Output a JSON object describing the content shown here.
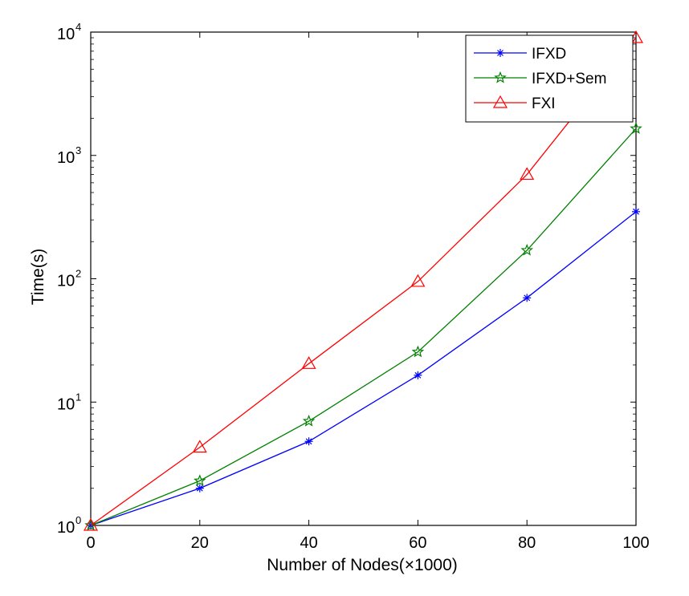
{
  "chart_data": {
    "type": "line",
    "title": "",
    "xlabel": "Number of Nodes(×1000)",
    "ylabel": "Time(s)",
    "xlim": [
      0,
      100
    ],
    "ylim": [
      1,
      10000
    ],
    "yscale": "log",
    "grid": false,
    "legend_position": "top-right",
    "x_ticks": [
      "0",
      "20",
      "40",
      "60",
      "80",
      "100"
    ],
    "y_ticks": [
      {
        "base": "10",
        "exp": "0",
        "value": 1
      },
      {
        "base": "10",
        "exp": "1",
        "value": 10
      },
      {
        "base": "10",
        "exp": "2",
        "value": 100
      },
      {
        "base": "10",
        "exp": "3",
        "value": 1000
      },
      {
        "base": "10",
        "exp": "4",
        "value": 10000
      }
    ],
    "x": [
      0,
      20,
      40,
      60,
      80,
      100
    ],
    "series": [
      {
        "name": "IFXD",
        "color": "#0000ff",
        "marker": "asterisk",
        "values": [
          1,
          2.0,
          4.8,
          16.5,
          70,
          350
        ]
      },
      {
        "name": "IFXD+Sem",
        "color": "#008000",
        "marker": "star",
        "values": [
          1,
          2.3,
          7.0,
          25.5,
          170,
          1650
        ]
      },
      {
        "name": "FXI",
        "color": "#ff0000",
        "marker": "triangle",
        "values": [
          1,
          4.3,
          20.5,
          95,
          700,
          9000
        ]
      }
    ]
  }
}
